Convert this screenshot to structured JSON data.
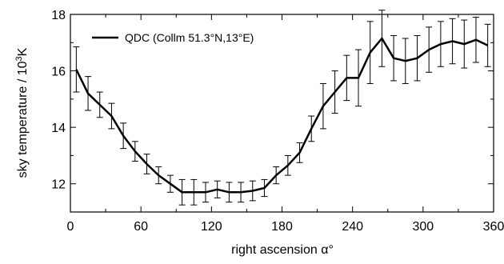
{
  "chart_data": {
    "type": "line",
    "xlabel": "right ascension α°",
    "ylabel_prefix": "sky temperature / 10",
    "ylabel_sup": "3",
    "ylabel_suffix": "K",
    "xlim": [
      0,
      360
    ],
    "ylim": [
      11,
      18
    ],
    "xticks": [
      0,
      60,
      120,
      180,
      240,
      300,
      360
    ],
    "yticks": [
      12,
      14,
      16,
      18
    ],
    "xtick_labels": [
      "0",
      "60",
      "120",
      "180",
      "240",
      "300",
      "360"
    ],
    "ytick_labels": [
      "12",
      "14",
      "16",
      "18"
    ],
    "grid": false,
    "legend_position": "top-left",
    "series": [
      {
        "name": "QDC (Collm 51.3°N,13°E)",
        "color": "#000000",
        "x": [
          5,
          15,
          25,
          35,
          45,
          55,
          65,
          75,
          85,
          95,
          105,
          115,
          125,
          135,
          145,
          155,
          165,
          175,
          185,
          195,
          205,
          215,
          225,
          235,
          245,
          255,
          265,
          275,
          285,
          295,
          305,
          315,
          325,
          335,
          345,
          355
        ],
        "y": [
          16.05,
          15.2,
          14.8,
          14.4,
          13.7,
          13.15,
          12.7,
          12.3,
          12.0,
          11.7,
          11.7,
          11.7,
          11.8,
          11.7,
          11.7,
          11.75,
          11.85,
          12.3,
          12.65,
          13.1,
          13.95,
          14.75,
          15.25,
          15.75,
          15.75,
          16.65,
          17.15,
          16.45,
          16.35,
          16.45,
          16.75,
          16.95,
          17.05,
          16.95,
          17.1,
          16.9
        ],
        "err": [
          0.8,
          0.6,
          0.45,
          0.45,
          0.45,
          0.35,
          0.35,
          0.3,
          0.3,
          0.45,
          0.45,
          0.35,
          0.3,
          0.35,
          0.35,
          0.35,
          0.3,
          0.3,
          0.35,
          0.35,
          0.45,
          0.8,
          0.75,
          0.8,
          1.0,
          1.1,
          1.0,
          0.8,
          0.8,
          0.8,
          0.8,
          0.8,
          0.8,
          0.85,
          0.8,
          0.75
        ]
      }
    ]
  }
}
